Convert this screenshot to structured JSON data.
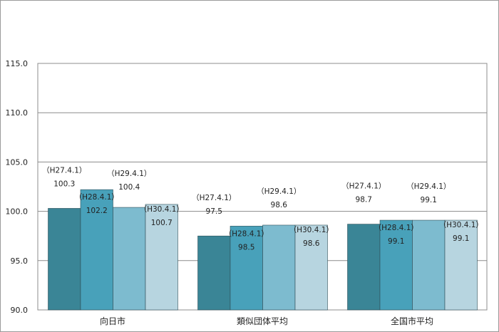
{
  "chart_data": {
    "type": "bar",
    "title": "",
    "xlabel": "",
    "ylabel": "",
    "ylim": [
      90,
      115
    ],
    "y_ticks": [
      "90.0",
      "95.0",
      "100.0",
      "105.0",
      "110.0",
      "115.0"
    ],
    "categories": [
      "向日市",
      "類似団体平均",
      "全国市平均"
    ],
    "series": [
      {
        "name": "H27.4.1",
        "color": "#3a8596",
        "values": [
          100.3,
          97.5,
          98.7
        ],
        "labels": [
          "（H27.4.1）\n100.3",
          "（H27.4.1）\n97.5",
          "（H27.4.1）\n98.7"
        ]
      },
      {
        "name": "H28.4.1",
        "color": "#48a1ba",
        "values": [
          102.2,
          98.5,
          99.1
        ],
        "labels": [
          "（H28.4.1）\n102.2",
          "（H28.4.1）\n98.5",
          "（H28.4.1）\n99.1"
        ]
      },
      {
        "name": "H29.4.1",
        "color": "#7dbbcf",
        "values": [
          100.4,
          98.6,
          99.1
        ],
        "labels": [
          "（H29.4.1）\n100.4",
          "（H29.4.1）\n98.6",
          "（H29.4.1）\n99.1"
        ]
      },
      {
        "name": "H30.4.1",
        "color": "#b7d5e0",
        "values": [
          100.7,
          98.6,
          99.1
        ],
        "labels": [
          "（H30.4.1）\n100.7",
          "（H30.4.1）\n98.6",
          "（H30.4.1）\n99.1"
        ]
      }
    ],
    "grid": true,
    "legend": "none"
  }
}
